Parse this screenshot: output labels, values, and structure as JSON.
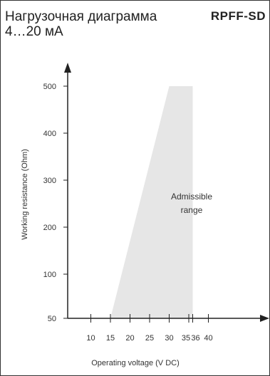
{
  "header": {
    "title_line1": "Нагрузочная диаграмма",
    "title_line2": "4…20 мА",
    "model": "RPFF-SD"
  },
  "chart_data": {
    "type": "area",
    "xlabel": "Operating voltage  (V DC)",
    "ylabel": "Working resistance  (Ohm)",
    "x_ticks": [
      10,
      15,
      20,
      25,
      30,
      35,
      36,
      40
    ],
    "x_tick_labels": [
      "10",
      "15",
      "20",
      "25",
      "30",
      "35",
      "36",
      "40"
    ],
    "y_ticks": [
      50,
      100,
      200,
      300,
      400,
      500
    ],
    "y_tick_labels": [
      "50",
      "100",
      "200",
      "300",
      "400",
      "500"
    ],
    "xlim": [
      5,
      44
    ],
    "ylim": [
      50,
      540
    ],
    "region": {
      "label_line1": "Admissible",
      "label_line2": "range",
      "polygon": [
        [
          15,
          50
        ],
        [
          30,
          500
        ],
        [
          36,
          500
        ],
        [
          36,
          50
        ]
      ],
      "color": "#e6e6e6"
    },
    "grid": false
  }
}
